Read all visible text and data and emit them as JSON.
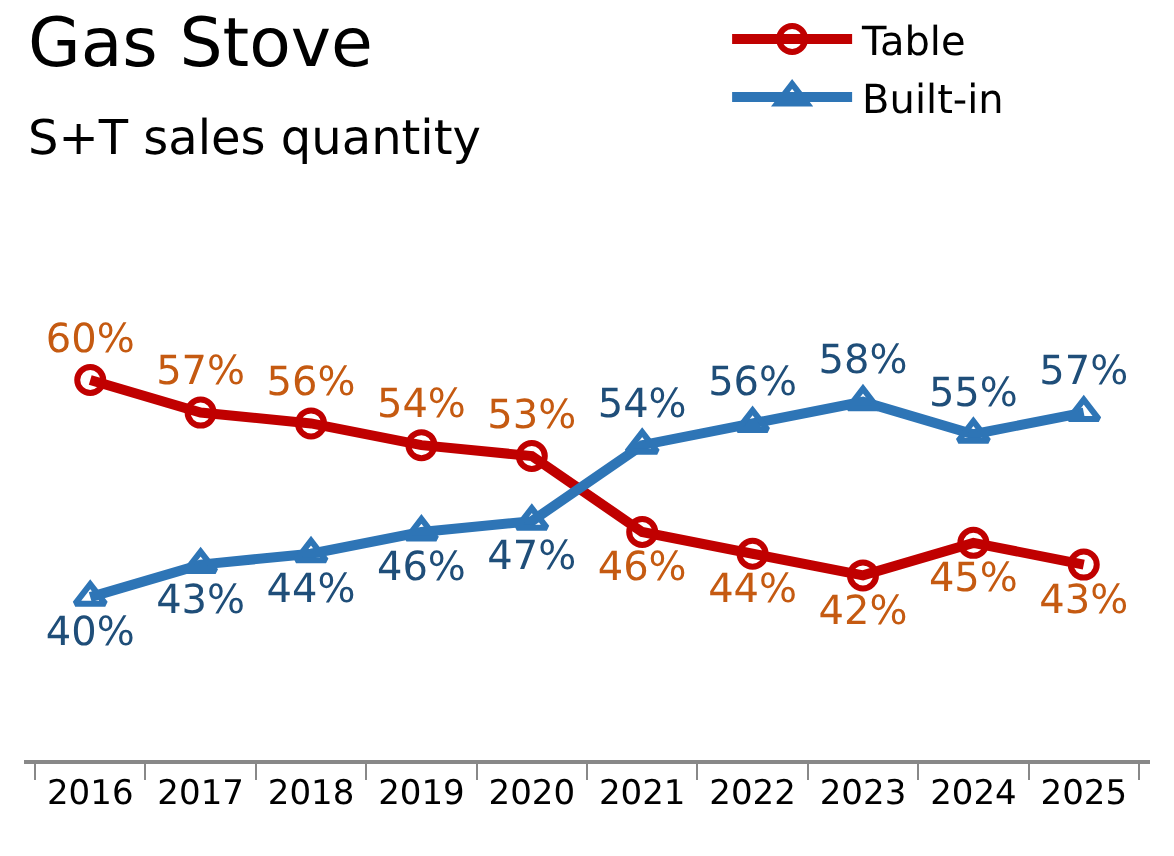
{
  "chart_data": {
    "type": "line",
    "title": "Gas Stove",
    "subtitle": "S+T sales quantity",
    "categories": [
      "2016",
      "2017",
      "2018",
      "2019",
      "2020",
      "2021",
      "2022",
      "2023",
      "2024",
      "2025"
    ],
    "series": [
      {
        "name": "Table",
        "color": "#c00000",
        "marker": "circle",
        "values": [
          60,
          57,
          56,
          54,
          53,
          46,
          44,
          42,
          45,
          43
        ],
        "value_labels": [
          "60%",
          "57%",
          "56%",
          "54%",
          "53%",
          "46%",
          "44%",
          "42%",
          "45%",
          "43%"
        ]
      },
      {
        "name": "Built-in",
        "color": "#2e75b6",
        "marker": "triangle",
        "values": [
          40,
          43,
          44,
          46,
          47,
          54,
          56,
          58,
          55,
          57
        ],
        "value_labels": [
          "40%",
          "43%",
          "44%",
          "46%",
          "47%",
          "54%",
          "56%",
          "58%",
          "55%",
          "57%"
        ]
      }
    ],
    "legend": "top right",
    "tick_labels": "x"
  }
}
